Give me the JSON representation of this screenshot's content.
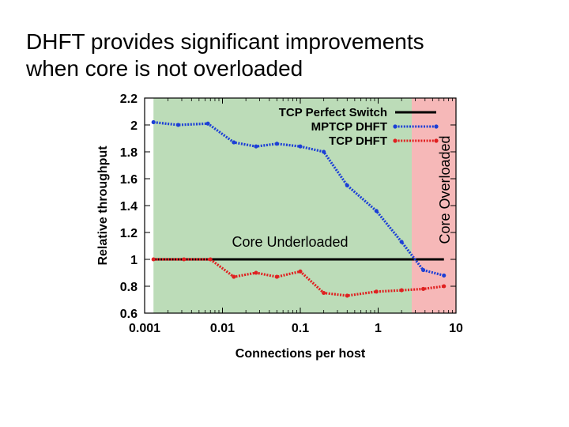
{
  "slide": {
    "title_line1": "DHFT provides significant improvements",
    "title_line2": "when core is not overloaded"
  },
  "chart_data": {
    "type": "line",
    "x_scale": "log",
    "xlim": [
      0.001,
      10
    ],
    "ylim": [
      0.6,
      2.2
    ],
    "xlabel": "Connections per host",
    "ylabel": "Relative throughput",
    "x_ticks": [
      0.001,
      0.01,
      0.1,
      1,
      10
    ],
    "x_tick_labels": [
      "0.001",
      "0.01",
      "0.1",
      "1",
      "10"
    ],
    "y_ticks": [
      0.6,
      0.8,
      1,
      1.2,
      1.4,
      1.6,
      1.8,
      2,
      2.2
    ],
    "y_tick_labels": [
      "0.6",
      "0.8",
      "1",
      "1.2",
      "1.4",
      "1.6",
      "1.8",
      "2",
      "2.2"
    ],
    "legend_position": "top-right",
    "regions": [
      {
        "label": "Core Underloaded",
        "x_range": [
          0.0013,
          2.7
        ],
        "color": "#bcdcb8"
      },
      {
        "label": "Core Overloaded",
        "x_range": [
          2.7,
          10
        ],
        "color": "#f6b8b8"
      }
    ],
    "series": [
      {
        "name": "TCP Perfect Switch",
        "color": "#000000",
        "style": "solid",
        "x": [
          0.0013,
          7.0
        ],
        "y": [
          1.0,
          1.0
        ]
      },
      {
        "name": "MPTCP DHFT",
        "color": "#1c3fd6",
        "style": "dotted",
        "x": [
          0.0013,
          0.0027,
          0.0065,
          0.014,
          0.027,
          0.05,
          0.1,
          0.2,
          0.4,
          0.95,
          2.0,
          3.8,
          7.0
        ],
        "y": [
          2.02,
          2.0,
          2.01,
          1.87,
          1.84,
          1.86,
          1.84,
          1.8,
          1.55,
          1.36,
          1.13,
          0.92,
          0.88
        ]
      },
      {
        "name": "TCP DHFT",
        "color": "#e02020",
        "style": "dotted",
        "x": [
          0.0013,
          0.0032,
          0.007,
          0.014,
          0.027,
          0.05,
          0.1,
          0.2,
          0.4,
          0.95,
          2.0,
          3.8,
          7.0
        ],
        "y": [
          1.0,
          1.0,
          1.0,
          0.87,
          0.9,
          0.87,
          0.91,
          0.75,
          0.73,
          0.76,
          0.77,
          0.78,
          0.8
        ]
      }
    ]
  }
}
